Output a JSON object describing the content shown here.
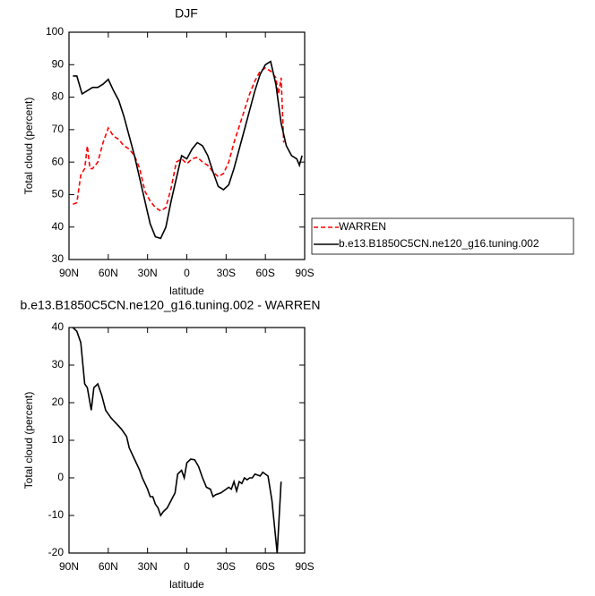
{
  "chart_data": [
    {
      "type": "line",
      "title": "DJF",
      "xlabel": "latitude",
      "ylabel": "Total cloud (percent)",
      "xlim": [
        90,
        -90
      ],
      "ylim": [
        30,
        100
      ],
      "xticks": [
        {
          "value": 90,
          "label": "90N"
        },
        {
          "value": 60,
          "label": "60N"
        },
        {
          "value": 30,
          "label": "30N"
        },
        0,
        {
          "value": -30,
          "label": "30S"
        },
        {
          "value": -60,
          "label": "60S"
        },
        {
          "value": -90,
          "label": "90S"
        }
      ],
      "yticks": [
        30,
        40,
        50,
        60,
        70,
        80,
        90,
        100
      ],
      "legend": "right",
      "series": [
        {
          "name": "WARREN",
          "color": "#ff0000",
          "linestyle": "dashed",
          "x": [
            87,
            84,
            81,
            78,
            76,
            74,
            72,
            68,
            64,
            60,
            56,
            52,
            48,
            44,
            40,
            36,
            32,
            28,
            24,
            20,
            16,
            12,
            8,
            4,
            0,
            -4,
            -8,
            -12,
            -16,
            -20,
            -24,
            -28,
            -32,
            -36,
            -40,
            -44,
            -48,
            -52,
            -56,
            -60,
            -64,
            -68,
            -70,
            -72,
            -74
          ],
          "values": [
            47,
            47.5,
            56,
            58,
            65,
            58,
            58,
            60,
            66,
            70.5,
            68,
            67,
            65,
            64,
            62,
            58,
            51,
            48,
            46,
            45,
            46,
            52,
            60,
            61,
            59.5,
            61,
            61.5,
            60,
            59,
            57,
            55.5,
            56.5,
            60,
            66,
            71,
            76,
            81,
            85,
            88,
            89,
            88,
            86,
            81,
            86,
            66
          ]
        },
        {
          "name": "b.e13.B1850C5CN.ne120_g16.tuning.002",
          "color": "#000000",
          "linestyle": "solid",
          "x": [
            87,
            84,
            80,
            76,
            72,
            68,
            64,
            60,
            56,
            52,
            48,
            44,
            40,
            36,
            32,
            28,
            24,
            20,
            16,
            12,
            8,
            4,
            0,
            -4,
            -8,
            -12,
            -16,
            -20,
            -24,
            -28,
            -32,
            -36,
            -40,
            -44,
            -48,
            -52,
            -56,
            -60,
            -64,
            -68,
            -72,
            -76,
            -80,
            -84,
            -86,
            -88
          ],
          "values": [
            86.5,
            86.5,
            81,
            82,
            83,
            83,
            84,
            85.5,
            82,
            79,
            74,
            68,
            62,
            55,
            48,
            41,
            37,
            36.5,
            40,
            48,
            55,
            62,
            61,
            64,
            66,
            65,
            62,
            57,
            52.5,
            51.5,
            53,
            58,
            64,
            70,
            76,
            82,
            87,
            90,
            91,
            84,
            72,
            65,
            62,
            61,
            59,
            62
          ]
        }
      ]
    },
    {
      "type": "line",
      "title": "b.e13.B1850C5CN.ne120_g16.tuning.002 - WARREN",
      "xlabel": "latitude",
      "ylabel": "Total cloud (percent)",
      "xlim": [
        90,
        -90
      ],
      "ylim": [
        -20,
        40
      ],
      "xticks": [
        {
          "value": 90,
          "label": "90N"
        },
        {
          "value": 60,
          "label": "60N"
        },
        {
          "value": 30,
          "label": "30N"
        },
        0,
        {
          "value": -30,
          "label": "30S"
        },
        {
          "value": -60,
          "label": "60S"
        },
        {
          "value": -90,
          "label": "90S"
        }
      ],
      "yticks": [
        -20,
        -10,
        0,
        10,
        20,
        30,
        40
      ],
      "series": [
        {
          "color": "#000000",
          "linestyle": "solid",
          "x": [
            87,
            84,
            81,
            78,
            76,
            73,
            71,
            68,
            65,
            62,
            58,
            54,
            50,
            46,
            44,
            40,
            36,
            34,
            30,
            28,
            26,
            24,
            22,
            20,
            18,
            15,
            12,
            9,
            7,
            4,
            2,
            0,
            -3,
            -6,
            -9,
            -12,
            -15,
            -18,
            -20,
            -22,
            -26,
            -30,
            -32,
            -34,
            -36,
            -38,
            -40,
            -42,
            -44,
            -46,
            -48,
            -50,
            -52,
            -56,
            -58,
            -62,
            -65,
            -69,
            -72
          ],
          "values": [
            40,
            39,
            36,
            25,
            24,
            18,
            24,
            25,
            22,
            18,
            16,
            14.5,
            13,
            11,
            8,
            5,
            2,
            0,
            -3,
            -5,
            -5,
            -7,
            -8,
            -10,
            -9,
            -8,
            -6,
            -4,
            1,
            2,
            0,
            4,
            5,
            4.8,
            3,
            0,
            -2.5,
            -3,
            -5,
            -4.5,
            -4,
            -3,
            -2.5,
            -3,
            -1,
            -3.5,
            -1,
            -1.5,
            0,
            -0.5,
            0,
            0,
            1,
            0.5,
            1.5,
            0.5,
            -6,
            -20,
            -1
          ]
        }
      ]
    }
  ]
}
